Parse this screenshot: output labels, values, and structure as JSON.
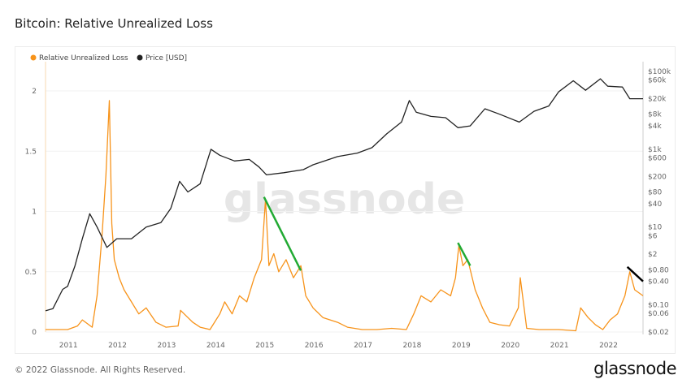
{
  "title": "Bitcoin: Relative Unrealized Loss",
  "footer": "© 2022 Glassnode. All Rights Reserved.",
  "logo": "glassnode",
  "watermark": "glassnode",
  "chart_data": {
    "type": "line",
    "title": "Bitcoin: Relative Unrealized Loss",
    "legend_placement": "top-left",
    "colors": {
      "rul": "#f7931a",
      "price": "#222222",
      "trend_green": "#22aa33",
      "trend_black": "#000000"
    },
    "x_ticks": [
      "2011",
      "2012",
      "2013",
      "2014",
      "2015",
      "2016",
      "2017",
      "2018",
      "2019",
      "2020",
      "2021",
      "2022"
    ],
    "xlim": [
      2010.55,
      2022.72
    ],
    "y_left": {
      "ticks": [
        0,
        0.5,
        1,
        1.5,
        2
      ],
      "labels": [
        "0",
        "0.5",
        "1",
        "1.5",
        "2"
      ],
      "ylim": [
        0,
        2.25
      ]
    },
    "y_right": {
      "scale": "log",
      "ticks": [
        0.02,
        0.06,
        0.1,
        0.4,
        0.8,
        2,
        6,
        10,
        40,
        80,
        200,
        600,
        1000,
        4000,
        8000,
        20000,
        60000,
        100000
      ],
      "labels": [
        "$0.02",
        "$0.06",
        "$0.10",
        "$0.40",
        "$0.80",
        "$2",
        "$6",
        "$10",
        "$40",
        "$80",
        "$200",
        "$600",
        "$1k",
        "$4k",
        "$8k",
        "$20k",
        "$60k",
        "$100k"
      ],
      "ylim": [
        0.02,
        150000
      ]
    },
    "series": [
      {
        "name": "Relative Unrealized Loss",
        "axis": "left",
        "x": [
          2010.55,
          2011.0,
          2011.2,
          2011.3,
          2011.5,
          2011.6,
          2011.7,
          2011.78,
          2011.85,
          2011.9,
          2011.95,
          2012.05,
          2012.15,
          2012.3,
          2012.45,
          2012.6,
          2012.8,
          2013.0,
          2013.25,
          2013.3,
          2013.45,
          2013.55,
          2013.7,
          2013.9,
          2014.1,
          2014.2,
          2014.35,
          2014.5,
          2014.65,
          2014.8,
          2014.95,
          2015.03,
          2015.1,
          2015.2,
          2015.3,
          2015.45,
          2015.6,
          2015.75,
          2015.85,
          2016.0,
          2016.2,
          2016.5,
          2016.7,
          2017.0,
          2017.3,
          2017.6,
          2017.9,
          2018.05,
          2018.2,
          2018.4,
          2018.6,
          2018.8,
          2018.9,
          2018.97,
          2019.05,
          2019.15,
          2019.3,
          2019.45,
          2019.6,
          2019.8,
          2020.0,
          2020.18,
          2020.22,
          2020.35,
          2020.6,
          2021.0,
          2021.35,
          2021.45,
          2021.6,
          2021.75,
          2021.9,
          2022.05,
          2022.2,
          2022.35,
          2022.45,
          2022.55,
          2022.72
        ],
        "y": [
          0.02,
          0.02,
          0.05,
          0.1,
          0.04,
          0.3,
          0.8,
          1.3,
          1.92,
          0.9,
          0.6,
          0.45,
          0.35,
          0.25,
          0.15,
          0.2,
          0.08,
          0.04,
          0.05,
          0.18,
          0.12,
          0.08,
          0.04,
          0.02,
          0.15,
          0.25,
          0.15,
          0.3,
          0.25,
          0.45,
          0.6,
          1.1,
          0.55,
          0.65,
          0.5,
          0.6,
          0.45,
          0.55,
          0.3,
          0.2,
          0.12,
          0.08,
          0.04,
          0.02,
          0.02,
          0.03,
          0.02,
          0.15,
          0.3,
          0.25,
          0.35,
          0.3,
          0.45,
          0.72,
          0.55,
          0.6,
          0.35,
          0.2,
          0.08,
          0.06,
          0.05,
          0.2,
          0.45,
          0.03,
          0.02,
          0.02,
          0.01,
          0.2,
          0.12,
          0.06,
          0.02,
          0.1,
          0.15,
          0.3,
          0.5,
          0.35,
          0.3
        ]
      },
      {
        "name": "Price [USD]",
        "axis": "right",
        "x": [
          2010.55,
          2010.7,
          2010.9,
          2011.0,
          2011.15,
          2011.3,
          2011.45,
          2011.6,
          2011.8,
          2012.0,
          2012.3,
          2012.6,
          2012.9,
          2013.1,
          2013.28,
          2013.45,
          2013.7,
          2013.92,
          2014.1,
          2014.4,
          2014.7,
          2014.9,
          2015.05,
          2015.4,
          2015.8,
          2016.0,
          2016.5,
          2016.9,
          2017.2,
          2017.5,
          2017.8,
          2017.96,
          2018.1,
          2018.4,
          2018.7,
          2018.95,
          2019.2,
          2019.5,
          2019.8,
          2020.2,
          2020.5,
          2020.8,
          2021.0,
          2021.3,
          2021.55,
          2021.85,
          2022.0,
          2022.3,
          2022.45,
          2022.72
        ],
        "y": [
          0.07,
          0.08,
          0.25,
          0.3,
          1,
          5,
          22,
          10,
          3,
          5,
          5,
          10,
          13,
          30,
          150,
          80,
          130,
          1000,
          700,
          500,
          550,
          350,
          220,
          250,
          300,
          400,
          650,
          800,
          1100,
          2500,
          5000,
          18000,
          9000,
          7000,
          6500,
          3600,
          4000,
          11000,
          8000,
          5000,
          9500,
          13000,
          30000,
          58000,
          33000,
          65000,
          42000,
          40000,
          20000,
          20000
        ]
      }
    ],
    "annotations": [
      {
        "type": "trend_line",
        "color": "trend_green",
        "from": [
          2015.0,
          1.12
        ],
        "to": [
          2015.75,
          0.51
        ]
      },
      {
        "type": "trend_line",
        "color": "trend_green",
        "from": [
          2018.95,
          0.74
        ],
        "to": [
          2019.2,
          0.55
        ]
      },
      {
        "type": "trend_line",
        "color": "trend_black",
        "from": [
          2022.4,
          0.54
        ],
        "to": [
          2022.72,
          0.42
        ]
      }
    ]
  }
}
